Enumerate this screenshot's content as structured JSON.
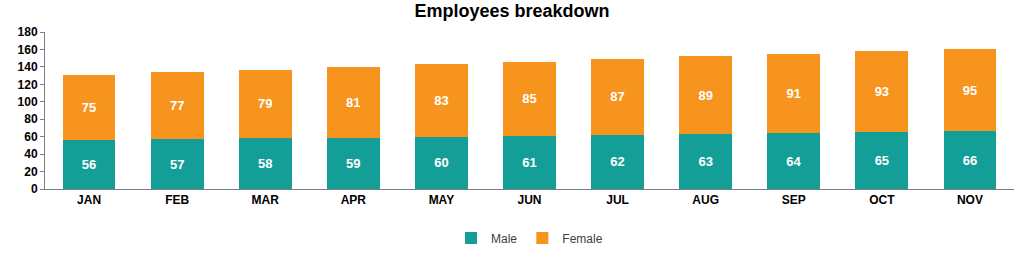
{
  "chart_data": {
    "type": "bar",
    "title": "Employees breakdown",
    "categories": [
      "JAN",
      "FEB",
      "MAR",
      "APR",
      "MAY",
      "JUN",
      "JUL",
      "AUG",
      "SEP",
      "OCT",
      "NOV"
    ],
    "series": [
      {
        "name": "Male",
        "color": "#139e98",
        "values": [
          56,
          57,
          58,
          59,
          60,
          61,
          62,
          63,
          64,
          65,
          66
        ]
      },
      {
        "name": "Female",
        "color": "#f7941d",
        "values": [
          75,
          77,
          79,
          81,
          83,
          85,
          87,
          89,
          91,
          93,
          95
        ]
      }
    ],
    "ylim": [
      0,
      180
    ],
    "yticks": [
      0,
      20,
      40,
      60,
      80,
      100,
      120,
      140,
      160,
      180
    ],
    "grid": false,
    "stacked": true,
    "data_labels": true,
    "legend": "bottom"
  }
}
